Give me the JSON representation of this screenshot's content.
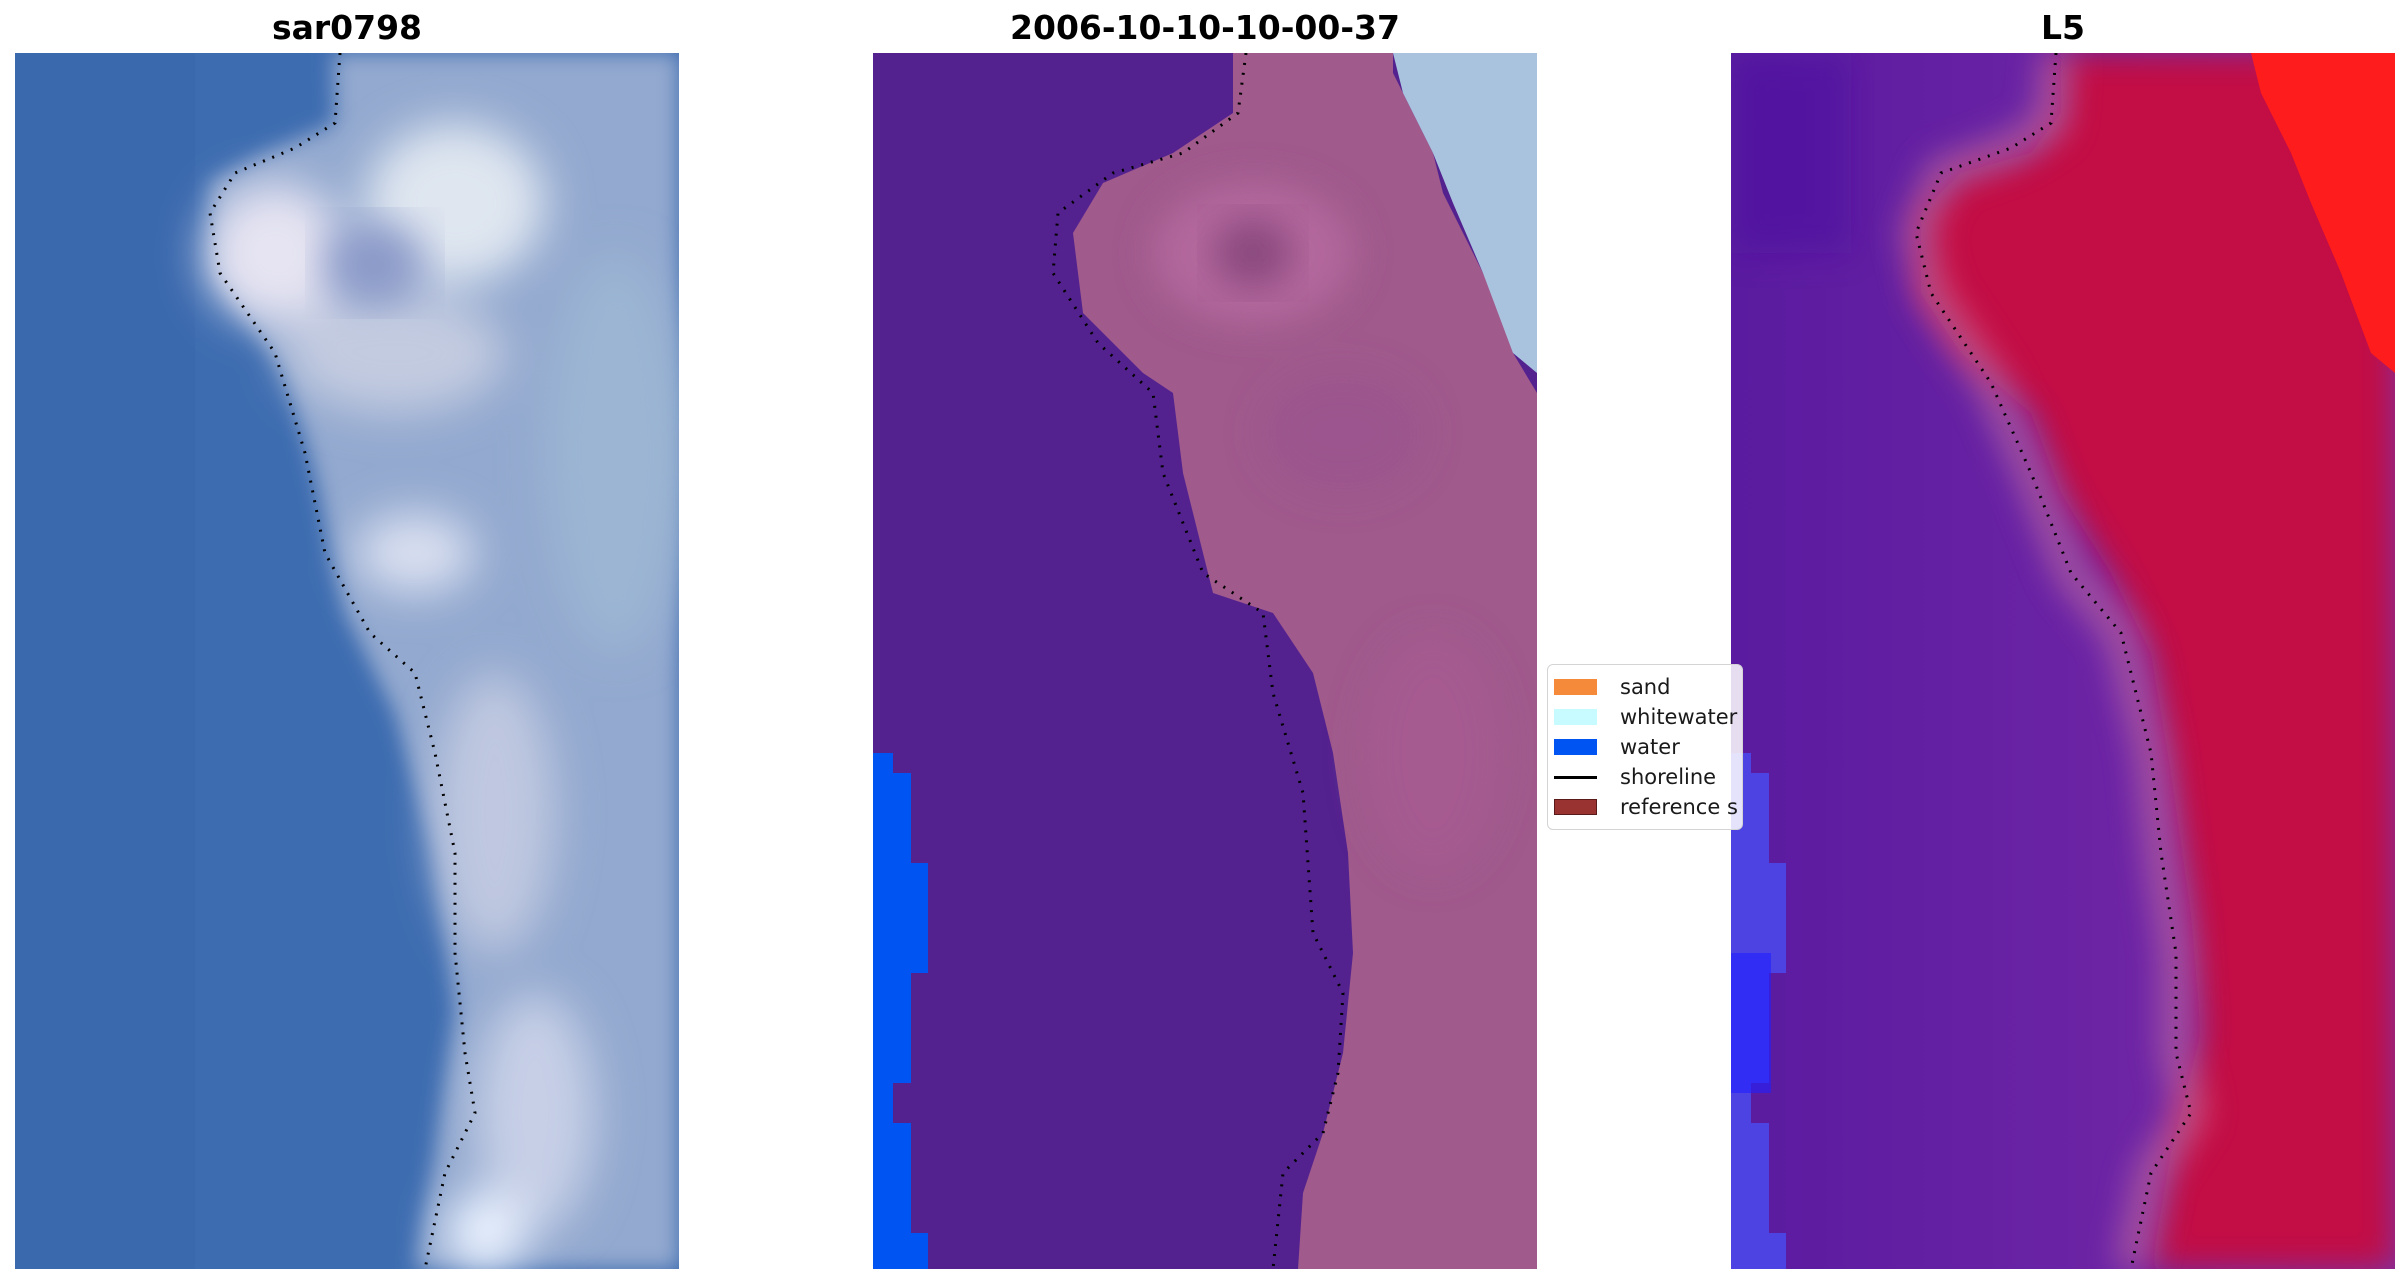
{
  "panels": [
    {
      "title": "sar0798"
    },
    {
      "title": "2006-10-10-10-00-37"
    },
    {
      "title": "L5"
    }
  ],
  "legend": {
    "items": [
      {
        "label": "sand",
        "color": "#f58a3a",
        "kind": "patch"
      },
      {
        "label": "whitewater",
        "color": "#c8fbff",
        "kind": "patch"
      },
      {
        "label": "water",
        "color": "#0055f2",
        "kind": "patch"
      },
      {
        "label": "shoreline",
        "color": "#000000",
        "kind": "line"
      },
      {
        "label": "reference s",
        "color": "#983331",
        "kind": "patch"
      }
    ]
  },
  "colors": {
    "water_rgb": "#3e6db1",
    "land_rgb": "#9aaed0",
    "classified_water": "#53228f",
    "classified_land": "#a25a8c",
    "classified_blue": "#0055f2",
    "index_low": "#6e22a8",
    "index_high": "#c01042",
    "index_red_corner": "#ff1414"
  }
}
